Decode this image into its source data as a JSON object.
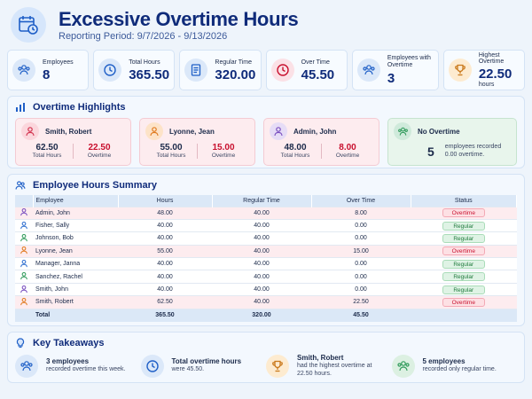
{
  "header": {
    "title": "Excessive Overtime Hours",
    "subtitle": "Reporting Period: 9/7/2026 - 9/13/2026",
    "icon": "calendar-clock-icon"
  },
  "kpis": [
    {
      "label": "Employees",
      "value": "8",
      "unit": "",
      "icon": "users-icon",
      "color": "#dbe8f9"
    },
    {
      "label": "Total Hours",
      "value": "365.50",
      "unit": "",
      "icon": "clock-icon",
      "color": "#dbe8f9"
    },
    {
      "label": "Regular Time",
      "value": "320.00",
      "unit": "",
      "icon": "document-icon",
      "color": "#dbe8f9"
    },
    {
      "label": "Over Time",
      "value": "45.50",
      "unit": "",
      "icon": "alarm-icon",
      "color": "#fbe1e6"
    },
    {
      "label": "Employees with Overtime",
      "value": "3",
      "unit": "",
      "icon": "users-icon",
      "color": "#dbe8f9"
    },
    {
      "label": "Highest Overtime",
      "value": "22.50",
      "unit": "hours",
      "icon": "trophy-icon",
      "color": "#fdebd0"
    }
  ],
  "highlights": {
    "title": "Overtime Highlights",
    "total_label": "Total Hours",
    "ot_label": "Overtime",
    "cards": [
      {
        "name": "Smith, Robert",
        "total": "62.50",
        "overtime": "22.50",
        "avatar_color": "#fbd6dc",
        "icon_color": "#d2334f"
      },
      {
        "name": "Lyonne, Jean",
        "total": "55.00",
        "overtime": "15.00",
        "avatar_color": "#fde3c8",
        "icon_color": "#e07a1f"
      },
      {
        "name": "Admin, John",
        "total": "48.00",
        "overtime": "8.00",
        "avatar_color": "#e6dcf6",
        "icon_color": "#7a4fc0"
      }
    ],
    "no_ot": {
      "title": "No Overtime",
      "count": "5",
      "desc1": "employees recorded",
      "desc2": "0.00 overtime."
    }
  },
  "summary": {
    "title": "Employee Hours Summary",
    "columns": [
      "Employee",
      "Hours",
      "Regular Time",
      "Over Time",
      "Status"
    ],
    "rows": [
      {
        "employee": "Admin, John",
        "hours": "48.00",
        "regular": "40.00",
        "overtime": "8.00",
        "status": "Overtime",
        "icon_color": "#7a4fc0"
      },
      {
        "employee": "Fisher, Sally",
        "hours": "40.00",
        "regular": "40.00",
        "overtime": "0.00",
        "status": "Regular",
        "icon_color": "#2f6fcf"
      },
      {
        "employee": "Johnson, Bob",
        "hours": "40.00",
        "regular": "40.00",
        "overtime": "0.00",
        "status": "Regular",
        "icon_color": "#2f9a5a"
      },
      {
        "employee": "Lyonne, Jean",
        "hours": "55.00",
        "regular": "40.00",
        "overtime": "15.00",
        "status": "Overtime",
        "icon_color": "#e07a1f"
      },
      {
        "employee": "Manager, Janna",
        "hours": "40.00",
        "regular": "40.00",
        "overtime": "0.00",
        "status": "Regular",
        "icon_color": "#2f6fcf"
      },
      {
        "employee": "Sanchez, Rachel",
        "hours": "40.00",
        "regular": "40.00",
        "overtime": "0.00",
        "status": "Regular",
        "icon_color": "#2f9a5a"
      },
      {
        "employee": "Smith, John",
        "hours": "40.00",
        "regular": "40.00",
        "overtime": "0.00",
        "status": "Regular",
        "icon_color": "#7a4fc0"
      },
      {
        "employee": "Smith, Robert",
        "hours": "62.50",
        "regular": "40.00",
        "overtime": "22.50",
        "status": "Overtime",
        "icon_color": "#e07a1f"
      }
    ],
    "total": {
      "label": "Total",
      "hours": "365.50",
      "regular": "320.00",
      "overtime": "45.50"
    }
  },
  "takeaways": {
    "title": "Key Takeaways",
    "items": [
      {
        "bold": "3 employees",
        "text": "recorded overtime this week.",
        "icon": "users-icon",
        "color": "#dbe8f9"
      },
      {
        "bold": "Total overtime hours",
        "text": "were 45.50.",
        "icon": "clock-icon",
        "color": "#dbe8f9"
      },
      {
        "bold": "Smith, Robert",
        "text": "had the highest overtime at 22.50 hours.",
        "icon": "trophy-icon",
        "color": "#fdebd0"
      },
      {
        "bold": "5 employees",
        "text": "recorded only regular time.",
        "icon": "users-icon",
        "color": "#dcf0e2"
      }
    ]
  }
}
